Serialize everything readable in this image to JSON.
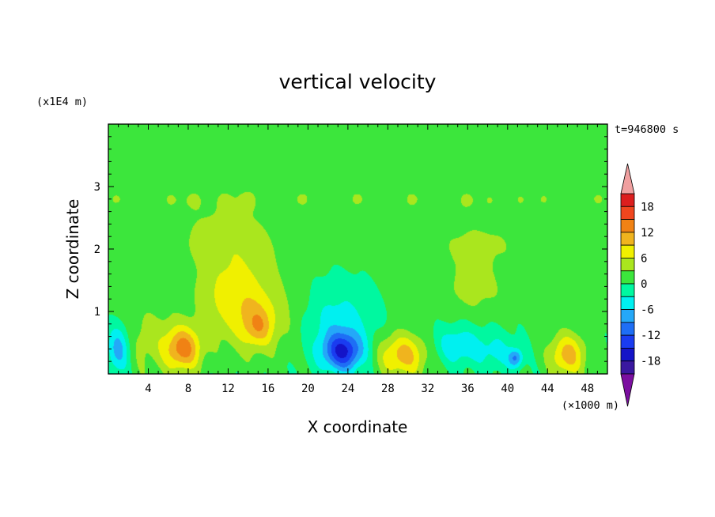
{
  "chart_data": {
    "type": "heatmap",
    "title": "vertical velocity",
    "xlabel": "X coordinate",
    "ylabel": "Z coordinate",
    "x_unit": "(×1000 m)",
    "y_unit": "(x1E4 m)",
    "time_label": "t=946800 s",
    "xlim": [
      0,
      50
    ],
    "ylim": [
      0,
      4
    ],
    "x_ticks": [
      4,
      8,
      12,
      16,
      20,
      24,
      28,
      32,
      36,
      40,
      44,
      48
    ],
    "y_ticks": [
      1,
      2,
      3
    ],
    "colorbar": {
      "levels": [
        -21,
        -18,
        -15,
        -12,
        -9,
        -6,
        -3,
        0,
        3,
        6,
        9,
        12,
        15,
        18,
        21
      ],
      "tick_values": [
        18,
        12,
        6,
        0,
        -6,
        -12,
        -18
      ],
      "colors": [
        "#7b0fa0",
        "#3a18a0",
        "#1414c8",
        "#1a3cf0",
        "#1e6ef5",
        "#24a8f8",
        "#00f0f0",
        "#00f8a0",
        "#3ce63c",
        "#aae61e",
        "#f0f000",
        "#f0b41e",
        "#f08214",
        "#f0461e",
        "#dc1e1e",
        "#f0a0a0"
      ],
      "extend": "both"
    },
    "background_value": 0.5,
    "features": [
      {
        "type": "blob",
        "x": 14.5,
        "z": 0.9,
        "sx": 4.2,
        "sz": 0.6,
        "v": 6
      },
      {
        "type": "blob",
        "x": 12.0,
        "z": 1.25,
        "sx": 3.0,
        "sz": 0.45,
        "v": 3.5
      },
      {
        "type": "blob",
        "x": 15.0,
        "z": 0.75,
        "sx": 1.4,
        "sz": 0.3,
        "v": 6
      },
      {
        "type": "blob",
        "x": 7.5,
        "z": 0.4,
        "sx": 1.8,
        "sz": 0.35,
        "v": 12
      },
      {
        "type": "blob",
        "x": 29.5,
        "z": 0.3,
        "sx": 2.5,
        "sz": 0.35,
        "v": 10
      },
      {
        "type": "blob",
        "x": 46.0,
        "z": 0.3,
        "sx": 1.8,
        "sz": 0.35,
        "v": 10
      },
      {
        "type": "blob",
        "x": 4.0,
        "z": 0.55,
        "sx": 3.5,
        "sz": 0.6,
        "v": 3.5
      },
      {
        "type": "blob",
        "x": 23.5,
        "z": 0.35,
        "sx": 2.0,
        "sz": 0.3,
        "v": -14
      },
      {
        "type": "blob",
        "x": 23.0,
        "z": 0.8,
        "sx": 3.5,
        "sz": 0.6,
        "v": -5
      },
      {
        "type": "blob",
        "x": 1.0,
        "z": 0.4,
        "sx": 1.2,
        "sz": 0.4,
        "v": -9
      },
      {
        "type": "blob",
        "x": 35.0,
        "z": 0.45,
        "sx": 2.5,
        "sz": 0.3,
        "v": -6
      },
      {
        "type": "blob",
        "x": 39.0,
        "z": 0.35,
        "sx": 2.0,
        "sz": 0.3,
        "v": -4
      },
      {
        "type": "blob",
        "x": 40.8,
        "z": 0.25,
        "sx": 0.7,
        "sz": 0.15,
        "v": -9
      },
      {
        "type": "blob",
        "x": 10.5,
        "z": 2.15,
        "sx": 4.5,
        "sz": 0.6,
        "v": 3
      },
      {
        "type": "blob",
        "x": 14.0,
        "z": 1.9,
        "sx": 4.0,
        "sz": 0.7,
        "v": 3
      },
      {
        "type": "blob",
        "x": 37.0,
        "z": 2.05,
        "sx": 6.0,
        "sz": 0.55,
        "v": 3
      },
      {
        "type": "blob",
        "x": 36.5,
        "z": 1.3,
        "sx": 3.5,
        "sz": 0.35,
        "v": 3
      },
      {
        "type": "band",
        "z": 2.8,
        "sz": 0.18,
        "v": 3
      }
    ]
  }
}
